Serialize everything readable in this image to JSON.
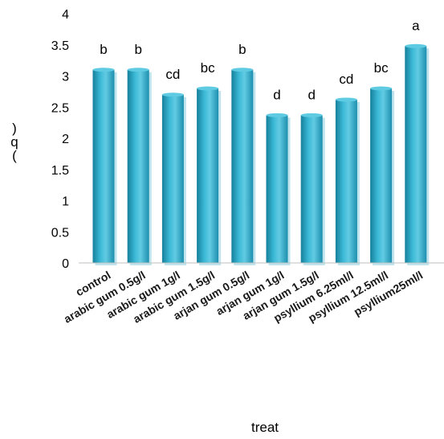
{
  "chart_data": {
    "type": "bar",
    "categories": [
      "control",
      "arabic gum 0.5g/l",
      "arabic gum 1g/l",
      "arabic gum 1.5g/l",
      "arjan gum 0.5g/l",
      "arjan gum 1g/l",
      "arjan gum 1.5g/l",
      "psyllium 6.25ml/l",
      "psyllium 12.5ml/l",
      "psyllium25ml/l"
    ],
    "values": [
      3.1,
      3.1,
      2.7,
      2.8,
      3.1,
      2.37,
      2.37,
      2.62,
      2.8,
      3.48
    ],
    "data_labels": [
      "b",
      "b",
      "cd",
      "bc",
      "b",
      "d",
      "d",
      "cd",
      "bc",
      "a"
    ],
    "xlabel": "treat",
    "ylabel": ")\nq\n(",
    "ylim": [
      0,
      4
    ],
    "yticks": [
      "0",
      "0.5",
      "1",
      "1.5",
      "2",
      "2.5",
      "3",
      "3.5",
      "4"
    ],
    "grid": false,
    "legend": "none",
    "colors": {
      "bar": "#2aa7c6",
      "bar_light": "#62cbe3",
      "bar_dark": "#15809c"
    }
  }
}
